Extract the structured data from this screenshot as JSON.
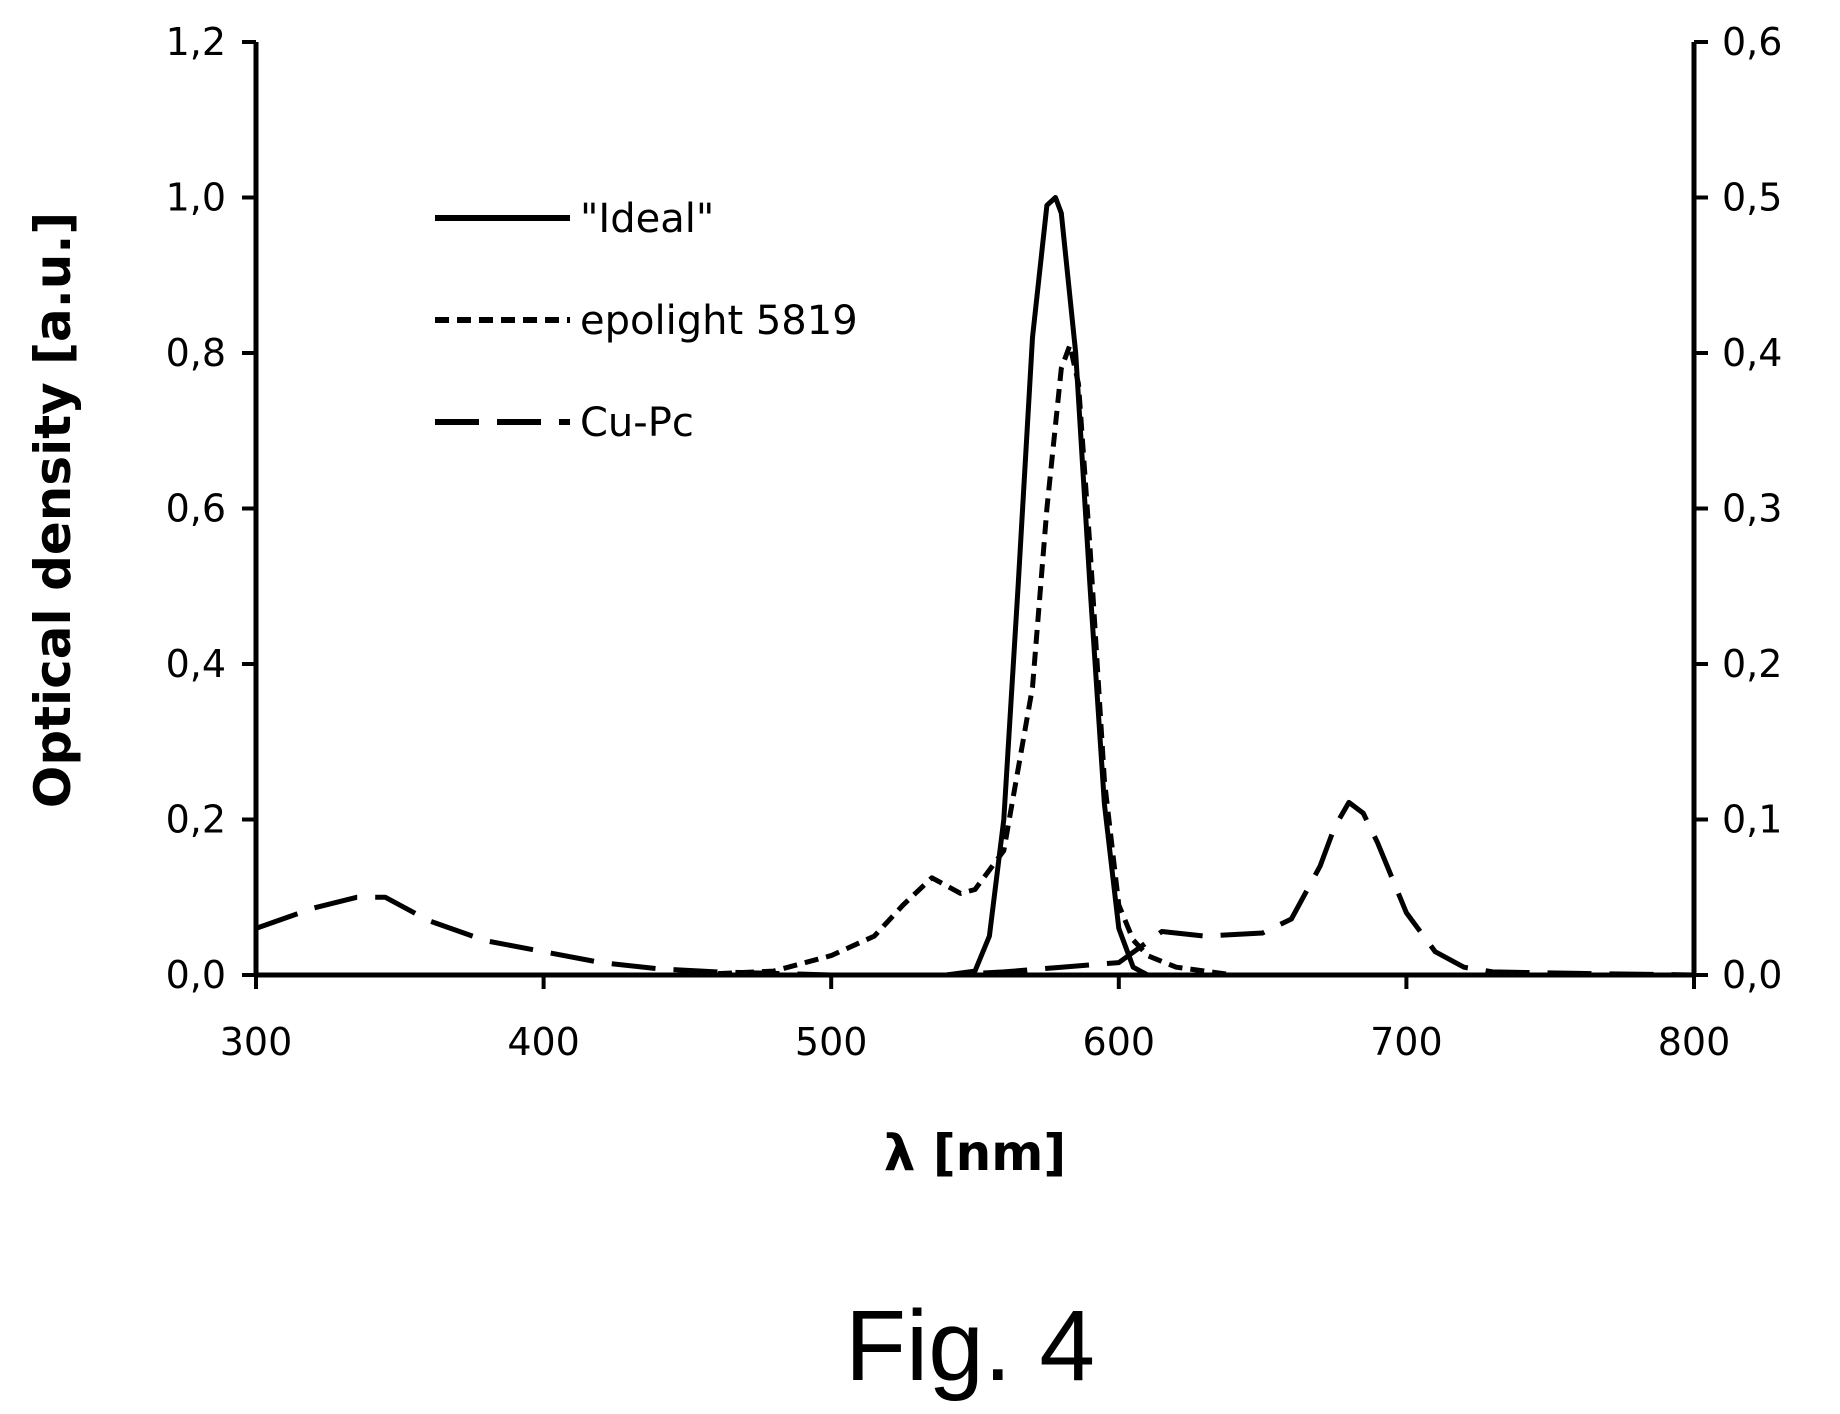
{
  "caption": "Fig. 4",
  "chart_data": {
    "type": "line",
    "xlabel": "λ [nm]",
    "ylabel": "Optical density [a.u.]",
    "xlim": [
      300,
      800
    ],
    "ylim": [
      0,
      1.2
    ],
    "y2lim": [
      0,
      0.6
    ],
    "x_ticks": [
      "300",
      "400",
      "500",
      "600",
      "700",
      "800"
    ],
    "y_ticks": [
      "0,0",
      "0,2",
      "0,4",
      "0,6",
      "0,8",
      "1,0",
      "1,2"
    ],
    "y2_ticks": [
      "0,0",
      "0,1",
      "0,2",
      "0,3",
      "0,4",
      "0,5",
      "0,6"
    ],
    "grid": false,
    "legend_position": "top-left",
    "series": [
      {
        "name": "\"Ideal\"",
        "style": "solid",
        "x": [
          540,
          550,
          555,
          560,
          565,
          570,
          575,
          578,
          580,
          585,
          590,
          595,
          600,
          605,
          610,
          620
        ],
        "y": [
          0.0,
          0.005,
          0.05,
          0.2,
          0.5,
          0.82,
          0.99,
          1.0,
          0.98,
          0.8,
          0.5,
          0.22,
          0.06,
          0.01,
          0.0,
          0.0
        ]
      },
      {
        "name": "epolight 5819",
        "style": "dashed",
        "x": [
          300,
          350,
          400,
          450,
          480,
          500,
          515,
          525,
          535,
          540,
          545,
          550,
          560,
          570,
          575,
          580,
          583,
          586,
          590,
          595,
          600,
          605,
          610,
          620,
          640,
          700,
          800
        ],
        "y": [
          0.0,
          0.0,
          0.0,
          0.0,
          0.005,
          0.025,
          0.05,
          0.09,
          0.125,
          0.115,
          0.105,
          0.11,
          0.16,
          0.37,
          0.6,
          0.78,
          0.81,
          0.76,
          0.55,
          0.25,
          0.09,
          0.045,
          0.025,
          0.01,
          0.0,
          0.0,
          0.0
        ]
      },
      {
        "name": "Cu-Pc",
        "style": "longdash",
        "x": [
          300,
          320,
          335,
          345,
          360,
          380,
          400,
          420,
          440,
          460,
          480,
          500,
          520,
          540,
          560,
          580,
          600,
          615,
          630,
          650,
          660,
          670,
          675,
          680,
          685,
          690,
          700,
          710,
          720,
          730,
          760,
          800
        ],
        "y": [
          0.03,
          0.043,
          0.05,
          0.05,
          0.035,
          0.022,
          0.015,
          0.008,
          0.004,
          0.002,
          0.001,
          0.0,
          0.0,
          0.0,
          0.002,
          0.005,
          0.008,
          0.028,
          0.025,
          0.027,
          0.036,
          0.07,
          0.095,
          0.111,
          0.104,
          0.085,
          0.04,
          0.015,
          0.005,
          0.002,
          0.001,
          0.0
        ]
      }
    ]
  }
}
